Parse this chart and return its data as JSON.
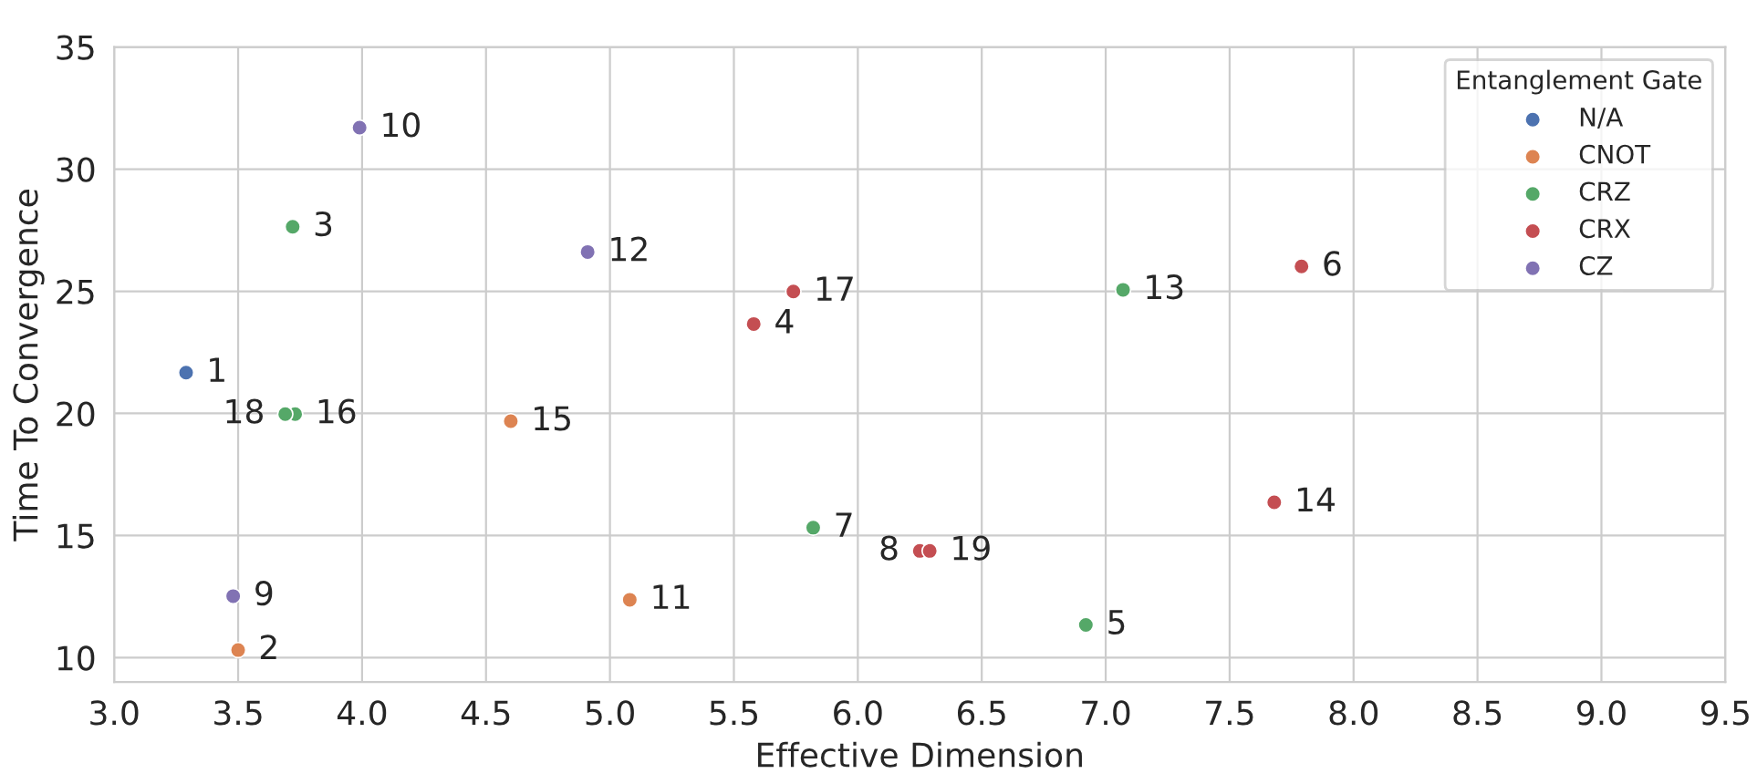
{
  "chart_data": {
    "type": "scatter",
    "xlabel": "Effective Dimension",
    "ylabel": "Time To Convergence",
    "legend_title": "Entanglement Gate",
    "series": [
      {
        "name": "N/A",
        "color": "#4c72b0",
        "x": [
          3.29
        ],
        "values": [
          21.67
        ]
      },
      {
        "name": "CNOT",
        "color": "#dd8452",
        "x": [
          3.5,
          5.08,
          4.6
        ],
        "values": [
          10.31,
          12.37,
          19.68
        ]
      },
      {
        "name": "CRZ",
        "color": "#55a868",
        "x": [
          3.72,
          6.92,
          5.82,
          7.07,
          3.73,
          3.69
        ],
        "values": [
          27.64,
          11.34,
          15.32,
          25.06,
          19.97,
          19.97
        ]
      },
      {
        "name": "CRX",
        "color": "#c44e52",
        "x": [
          5.58,
          7.79,
          6.25,
          7.68,
          5.74,
          6.29
        ],
        "values": [
          23.66,
          26.02,
          14.37,
          16.36,
          24.99,
          14.37
        ]
      },
      {
        "name": "CZ",
        "color": "#8172b3",
        "x": [
          3.48,
          3.99,
          4.91
        ],
        "values": [
          12.52,
          31.7,
          26.61
        ]
      }
    ],
    "annotations": [
      {
        "text": "1",
        "x": 3.29,
        "y": 21.67
      },
      {
        "text": "2",
        "x": 3.5,
        "y": 10.31
      },
      {
        "text": "3",
        "x": 3.72,
        "y": 27.64
      },
      {
        "text": "4",
        "x": 5.58,
        "y": 23.66
      },
      {
        "text": "5",
        "x": 6.92,
        "y": 11.34
      },
      {
        "text": "6",
        "x": 7.79,
        "y": 26.02
      },
      {
        "text": "7",
        "x": 5.82,
        "y": 15.32
      },
      {
        "text": "8",
        "x": 6.25,
        "y": 14.37
      },
      {
        "text": "9",
        "x": 3.48,
        "y": 12.52
      },
      {
        "text": "10",
        "x": 3.99,
        "y": 31.7
      },
      {
        "text": "11",
        "x": 5.08,
        "y": 12.37
      },
      {
        "text": "12",
        "x": 4.91,
        "y": 26.61
      },
      {
        "text": "13",
        "x": 7.07,
        "y": 25.06
      },
      {
        "text": "14",
        "x": 7.68,
        "y": 16.36
      },
      {
        "text": "15",
        "x": 4.6,
        "y": 19.68
      },
      {
        "text": "16",
        "x": 3.73,
        "y": 19.97
      },
      {
        "text": "17",
        "x": 5.74,
        "y": 24.99
      },
      {
        "text": "18",
        "x": 3.69,
        "y": 19.97
      },
      {
        "text": "19",
        "x": 6.29,
        "y": 14.37
      }
    ],
    "xlim": [
      3.0,
      9.5
    ],
    "xticks": [
      {
        "value": 3,
        "label": "3.0"
      },
      3.5,
      {
        "value": 4,
        "label": "4.0"
      },
      4.5,
      {
        "value": 5,
        "label": "5.0"
      },
      5.5,
      {
        "value": 6,
        "label": "6.0"
      },
      6.5,
      {
        "value": 7,
        "label": "7.0"
      },
      7.5,
      {
        "value": 8,
        "label": "8.0"
      },
      8.5,
      {
        "value": 9,
        "label": "9.0"
      },
      9.5
    ],
    "ylim": [
      9,
      35
    ],
    "yticks": [
      10,
      15,
      20,
      25,
      30,
      35
    ],
    "grid": true,
    "legend": "top right",
    "marker": "circle"
  }
}
